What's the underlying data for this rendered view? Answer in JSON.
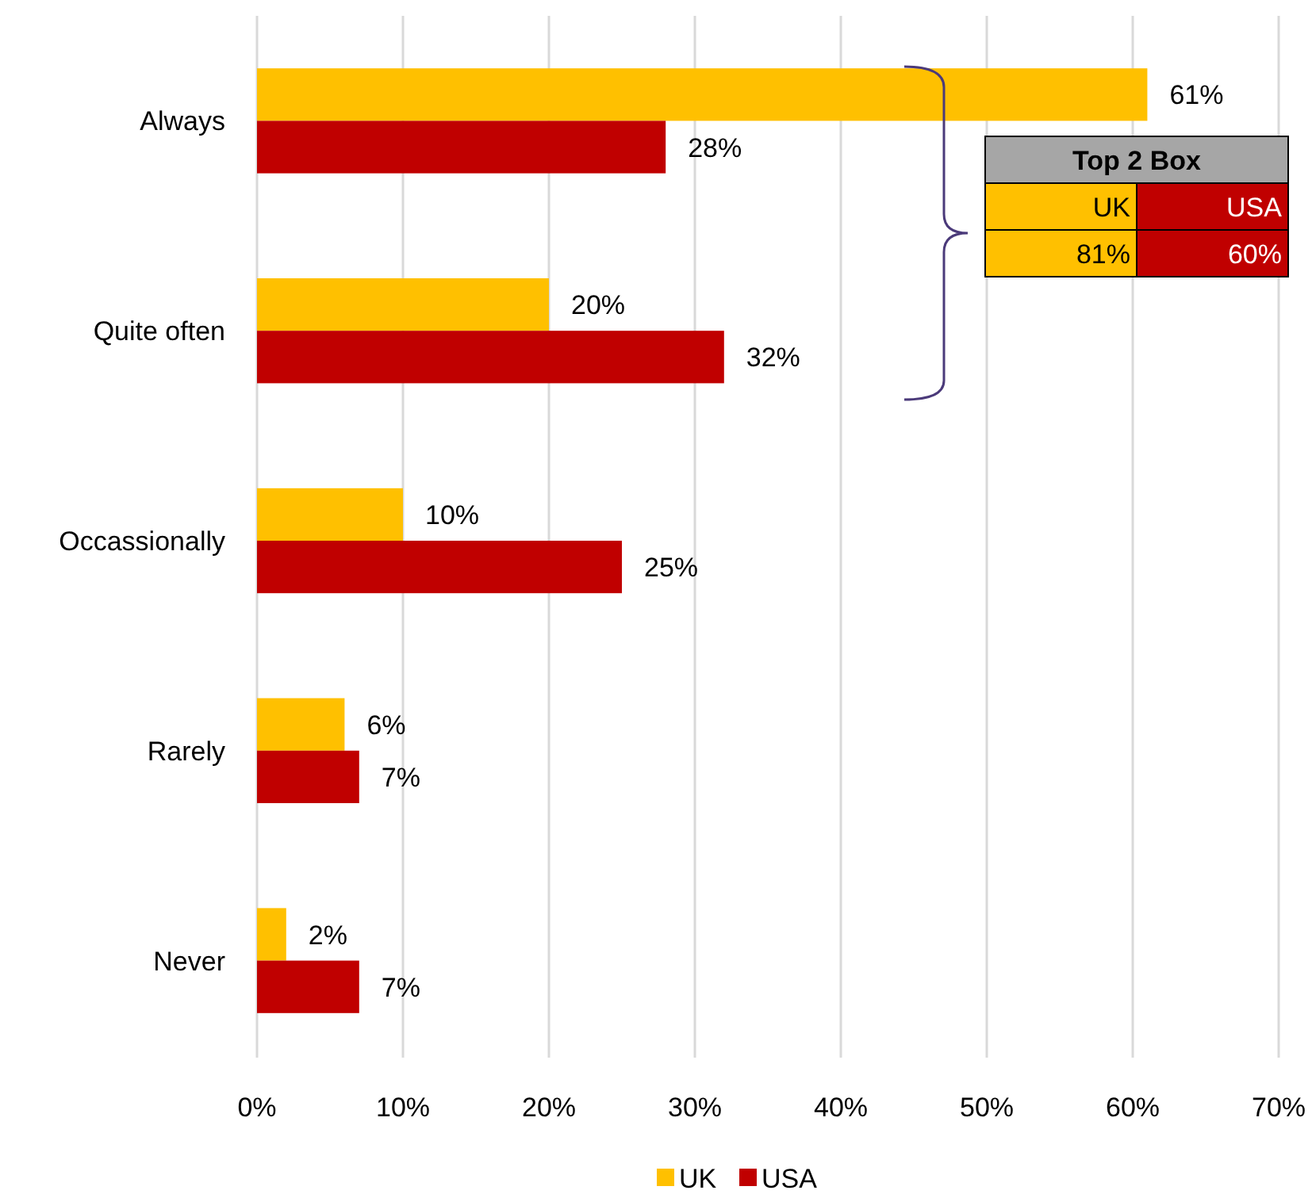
{
  "chart_data": {
    "type": "bar",
    "orientation": "horizontal",
    "categories": [
      "Always",
      "Quite often",
      "Occassionally",
      "Rarely",
      "Never"
    ],
    "series": [
      {
        "name": "UK",
        "color": "#ffc000",
        "values": [
          61,
          20,
          10,
          6,
          2
        ],
        "value_labels": [
          "61%",
          "20%",
          "10%",
          "6%",
          "2%"
        ]
      },
      {
        "name": "USA",
        "color": "#c00000",
        "values": [
          28,
          32,
          25,
          7,
          7
        ],
        "value_labels": [
          "28%",
          "32%",
          "25%",
          "7%",
          "7%"
        ]
      }
    ],
    "xlim": [
      0,
      70
    ],
    "xticks": [
      {
        "value": 0,
        "label": "0%"
      },
      {
        "value": 10,
        "label": "10%"
      },
      {
        "value": 20,
        "label": "20%"
      },
      {
        "value": 30,
        "label": "30%"
      },
      {
        "value": 40,
        "label": "40%"
      },
      {
        "value": 50,
        "label": "50%"
      },
      {
        "value": 60,
        "label": "60%"
      },
      {
        "value": 70,
        "label": "70%"
      }
    ],
    "grid": "x",
    "legend": "bottom",
    "annotations": [
      "Top 2 Box",
      "81%",
      "60%"
    ]
  }
}
